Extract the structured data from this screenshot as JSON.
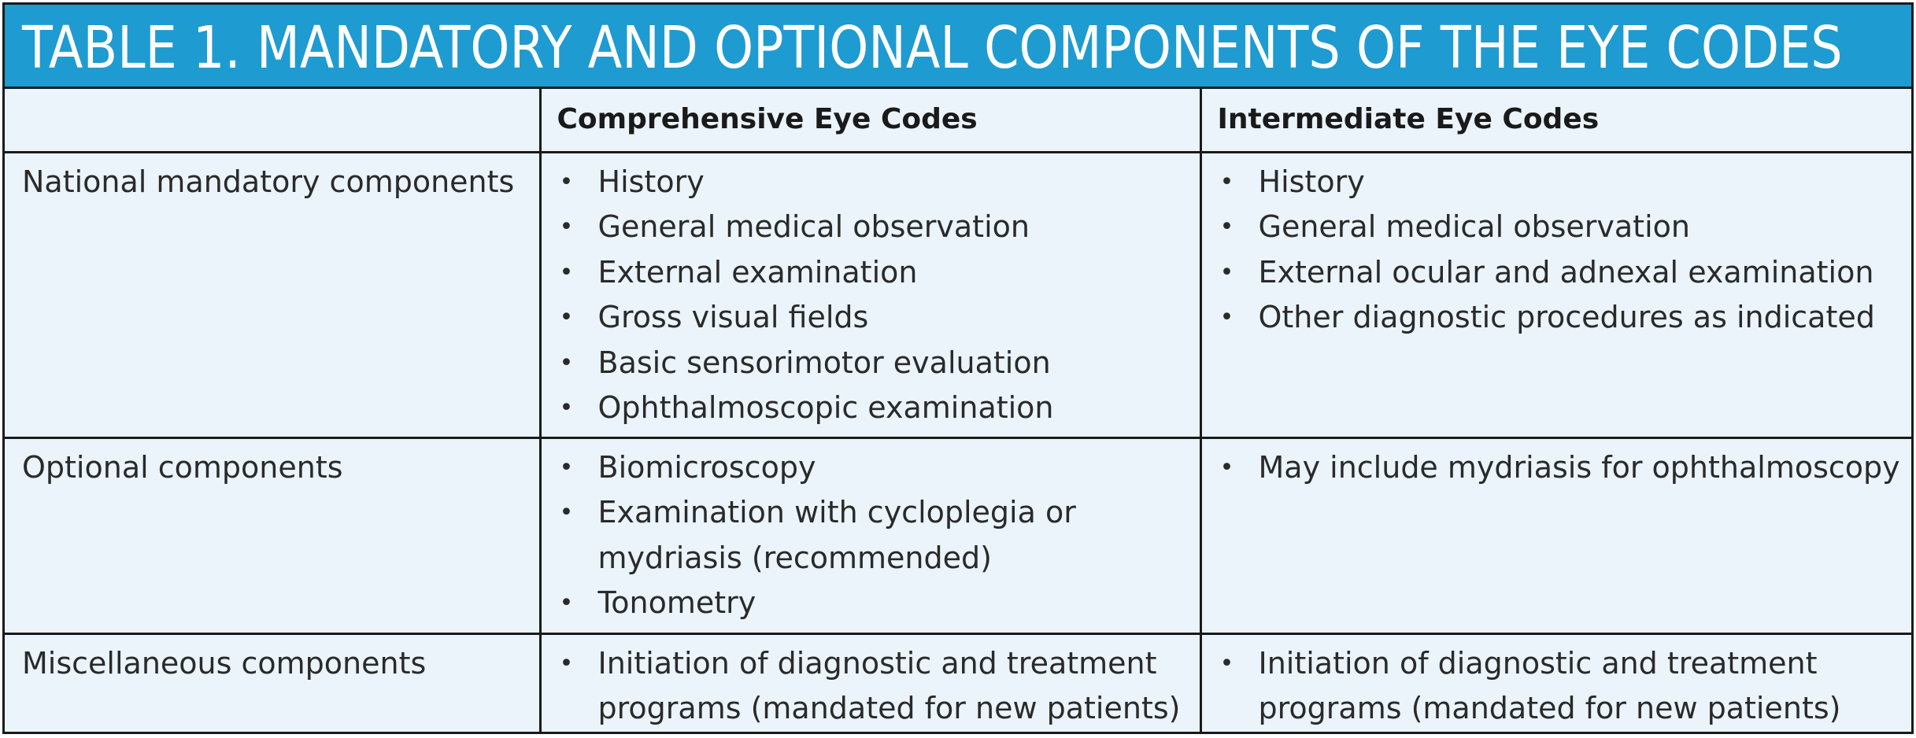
{
  "title": "TABLE 1.  MANDATORY AND OPTIONAL COMPONENTS OF THE EYE CODES",
  "header": {
    "col1": "",
    "col2": "Comprehensive Eye Codes",
    "col3": "Intermediate Eye Codes"
  },
  "rows": [
    {
      "label": "National mandatory components",
      "comprehensive": [
        "History",
        "General medical observation",
        "External examination",
        "Gross visual fields",
        "Basic sensorimotor evaluation",
        "Ophthalmoscopic examination"
      ],
      "intermediate": [
        "History",
        "General medical observation",
        "External ocular and adnexal examination",
        "Other diagnostic procedures as indicated"
      ]
    },
    {
      "label": "Optional components",
      "comprehensive": [
        "Biomicroscopy",
        "Examination with cycloplegia or mydriasis (recommended)",
        "Tonometry"
      ],
      "intermediate": [
        "May include mydriasis for ophthalmoscopy"
      ]
    },
    {
      "label": "Miscellaneous components",
      "comprehensive": [
        "Initiation of diagnostic and treatment programs (mandated for new patients)"
      ],
      "intermediate": [
        "Initiation of diagnostic and treatment programs (mandated for new patients)"
      ]
    }
  ],
  "bullet_glyph": "•",
  "colors": {
    "title_bar": "#1e9bd1",
    "table_bg": "#eaf4fa",
    "border": "#1a1a1a"
  }
}
